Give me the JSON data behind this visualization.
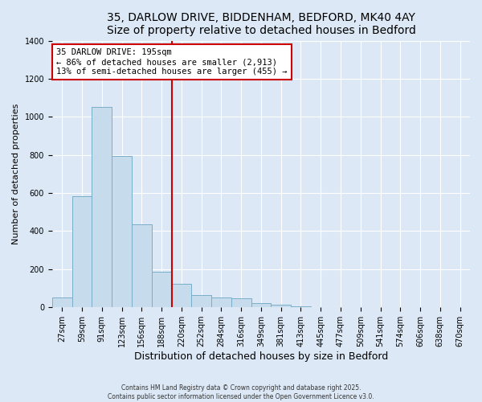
{
  "title_line1": "35, DARLOW DRIVE, BIDDENHAM, BEDFORD, MK40 4AY",
  "title_line2": "Size of property relative to detached houses in Bedford",
  "xlabel": "Distribution of detached houses by size in Bedford",
  "ylabel": "Number of detached properties",
  "bar_labels": [
    "27sqm",
    "59sqm",
    "91sqm",
    "123sqm",
    "156sqm",
    "188sqm",
    "220sqm",
    "252sqm",
    "284sqm",
    "316sqm",
    "349sqm",
    "381sqm",
    "413sqm",
    "445sqm",
    "477sqm",
    "509sqm",
    "541sqm",
    "574sqm",
    "606sqm",
    "638sqm",
    "670sqm"
  ],
  "bar_values": [
    50,
    585,
    1050,
    795,
    435,
    185,
    125,
    65,
    50,
    48,
    22,
    12,
    5,
    2,
    0,
    0,
    0,
    0,
    0,
    0,
    3
  ],
  "bar_color": "#c6dcec",
  "bar_edge_color": "#7aaec8",
  "vline_x": 5.5,
  "vline_color": "#cc0000",
  "ylim": [
    0,
    1400
  ],
  "yticks": [
    0,
    200,
    400,
    600,
    800,
    1000,
    1200,
    1400
  ],
  "annotation_title": "35 DARLOW DRIVE: 195sqm",
  "annotation_line1": "← 86% of detached houses are smaller (2,913)",
  "annotation_line2": "13% of semi-detached houses are larger (455) →",
  "annotation_box_color": "#ffffff",
  "annotation_box_edge": "#cc0000",
  "footer1": "Contains HM Land Registry data © Crown copyright and database right 2025.",
  "footer2": "Contains public sector information licensed under the Open Government Licence v3.0.",
  "bg_color": "#dce8f5",
  "grid_color": "#ffffff",
  "title_fontsize": 10,
  "xlabel_fontsize": 9,
  "ylabel_fontsize": 8,
  "tick_fontsize": 7
}
